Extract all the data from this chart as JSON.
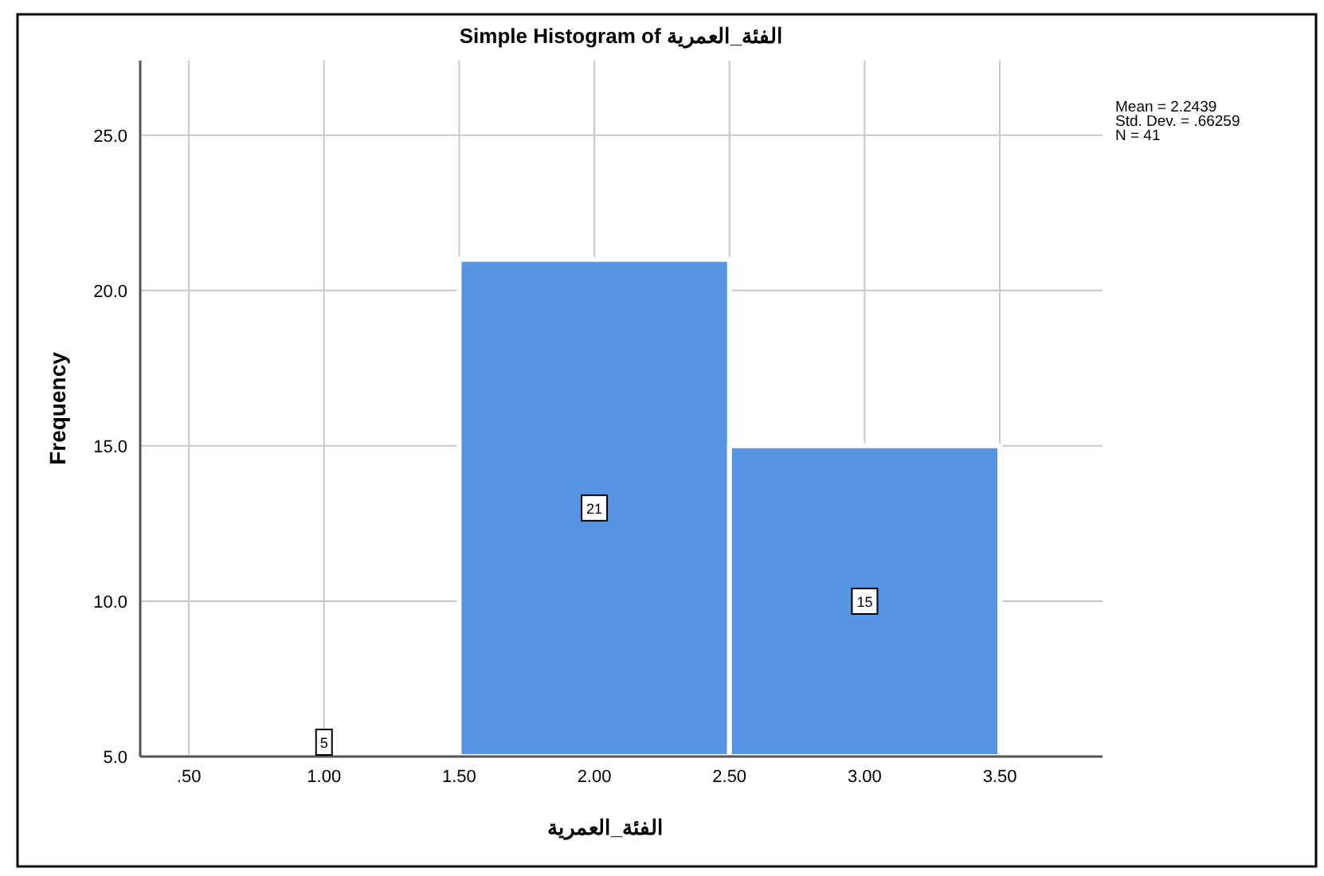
{
  "chart_data": {
    "type": "histogram",
    "title": "Simple Histogram of الفئة_العمرية",
    "xlabel": "الفئة_العمرية",
    "ylabel": "Frequency",
    "bins": [
      0.5,
      1.5,
      2.5,
      3.5
    ],
    "values": [
      5,
      21,
      15
    ],
    "color": "#5795e3",
    "xlim": [
      0.32,
      3.88
    ],
    "ylim": [
      5,
      27.4
    ],
    "xticks": [
      {
        "value": 0.5,
        "label": ".50"
      },
      {
        "value": 1,
        "label": "1.00"
      },
      {
        "value": 1.5,
        "label": "1.50"
      },
      {
        "value": 2,
        "label": "2.00"
      },
      {
        "value": 2.5,
        "label": "2.50"
      },
      {
        "value": 3,
        "label": "3.00"
      },
      {
        "value": 3.5,
        "label": "3.50"
      }
    ],
    "yticks": [
      {
        "value": 5,
        "label": "5.0"
      },
      {
        "value": 10,
        "label": "10.0"
      },
      {
        "value": 15,
        "label": "15.0"
      },
      {
        "value": 20,
        "label": "20.0"
      },
      {
        "value": 25,
        "label": "25.0"
      }
    ],
    "grid": true,
    "data_labels": true,
    "annotations": [
      "Mean = 2.2439",
      "Std. Dev. = .66259",
      "N = 41"
    ]
  }
}
